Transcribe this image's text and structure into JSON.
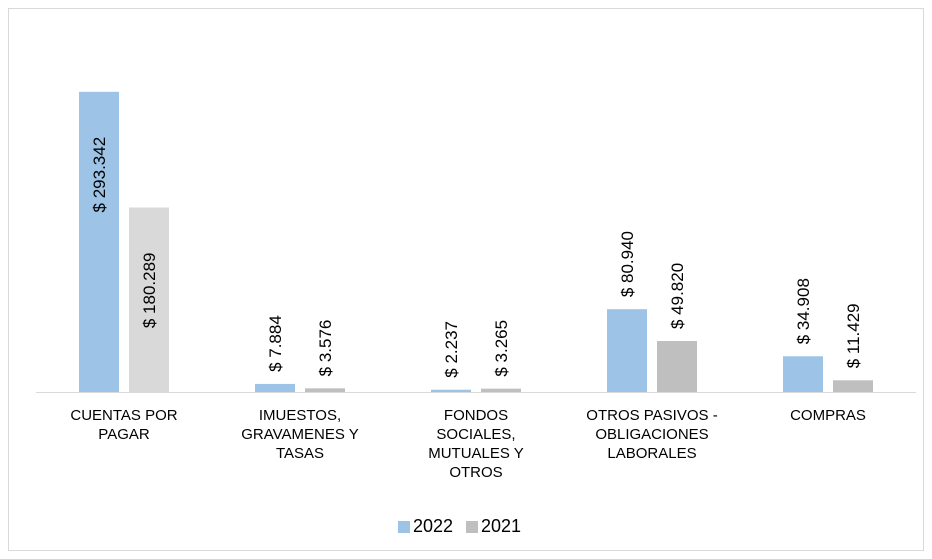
{
  "chart_data": {
    "type": "bar",
    "categories": [
      "CUENTAS POR PAGAR",
      "IMUESTOS, GRAVAMENES Y TASAS",
      "FONDOS SOCIALES, MUTUALES Y OTROS",
      "OTROS PASIVOS - OBLIGACIONES LABORALES",
      "COMPRAS"
    ],
    "series": [
      {
        "name": "2022",
        "color": "#9dc3e6",
        "values": [
          293342,
          7884,
          2237,
          80940,
          34908
        ],
        "value_labels": [
          "$ 293.342",
          "$ 7.884",
          "$ 2.237",
          "$ 80.940",
          "$ 34.908"
        ]
      },
      {
        "name": "2021",
        "color": "#bfbfbf",
        "colors": [
          "#d9d9d9",
          "#bfbfbf",
          "#bfbfbf",
          "#bfbfbf",
          "#bfbfbf"
        ],
        "values": [
          180289,
          3576,
          3265,
          49820,
          11429
        ],
        "value_labels": [
          "$ 180.289",
          "$ 3.576",
          "$ 3.265",
          "$ 49.820",
          "$ 11.429"
        ]
      }
    ],
    "ylim": [
      0,
      300000
    ],
    "legend": "bottom"
  }
}
